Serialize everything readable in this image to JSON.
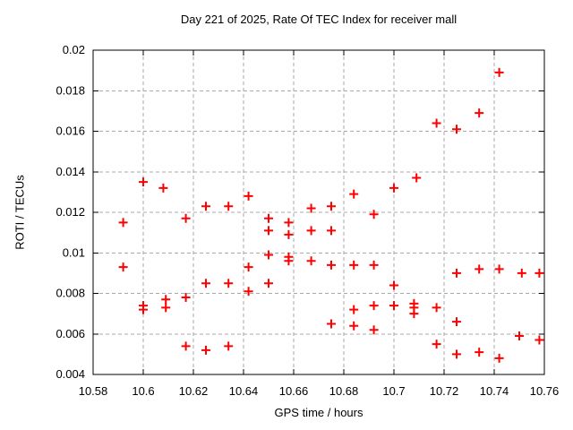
{
  "chart_data": {
    "type": "scatter",
    "title": "Day 221 of 2025, Rate Of TEC Index for receiver mall",
    "xlabel": "GPS time / hours",
    "ylabel": "ROTI / TECUs",
    "xlim": [
      10.58,
      10.76
    ],
    "ylim": [
      0.004,
      0.02
    ],
    "xtick_values": [
      10.58,
      10.6,
      10.62,
      10.64,
      10.66,
      10.68,
      10.7,
      10.72,
      10.74,
      10.76
    ],
    "xtick_labels": [
      "10.58",
      "10.6",
      "10.62",
      "10.64",
      "10.66",
      "10.68",
      "10.7",
      "10.72",
      "10.74",
      "10.76"
    ],
    "ytick_values": [
      0.004,
      0.006,
      0.008,
      0.01,
      0.012,
      0.014,
      0.016,
      0.018,
      0.02
    ],
    "ytick_labels": [
      "0.004",
      "0.006",
      "0.008",
      "0.01",
      "0.012",
      "0.014",
      "0.016",
      "0.018",
      "0.02"
    ],
    "grid": true,
    "legend": "none",
    "marker": {
      "shape": "plus",
      "color": "#ff0000",
      "size": 11
    },
    "grid_color": "#a9a9a9",
    "border_color": "#000000",
    "series": [
      {
        "name": "ROTI",
        "points": [
          [
            10.592,
            0.0115
          ],
          [
            10.592,
            0.0093
          ],
          [
            10.6,
            0.0135
          ],
          [
            10.6,
            0.0074
          ],
          [
            10.6,
            0.0072
          ],
          [
            10.608,
            0.0132
          ],
          [
            10.609,
            0.0077
          ],
          [
            10.609,
            0.0073
          ],
          [
            10.617,
            0.0117
          ],
          [
            10.617,
            0.0078
          ],
          [
            10.617,
            0.0054
          ],
          [
            10.625,
            0.0123
          ],
          [
            10.625,
            0.0085
          ],
          [
            10.625,
            0.0052
          ],
          [
            10.634,
            0.0123
          ],
          [
            10.634,
            0.0085
          ],
          [
            10.634,
            0.0054
          ],
          [
            10.642,
            0.0128
          ],
          [
            10.642,
            0.0093
          ],
          [
            10.642,
            0.0081
          ],
          [
            10.65,
            0.0117
          ],
          [
            10.65,
            0.0111
          ],
          [
            10.65,
            0.0099
          ],
          [
            10.65,
            0.0085
          ],
          [
            10.658,
            0.0115
          ],
          [
            10.658,
            0.0109
          ],
          [
            10.658,
            0.0098
          ],
          [
            10.658,
            0.0096
          ],
          [
            10.667,
            0.0122
          ],
          [
            10.667,
            0.0111
          ],
          [
            10.667,
            0.0096
          ],
          [
            10.675,
            0.0123
          ],
          [
            10.675,
            0.0111
          ],
          [
            10.675,
            0.0094
          ],
          [
            10.675,
            0.0065
          ],
          [
            10.684,
            0.0129
          ],
          [
            10.684,
            0.0094
          ],
          [
            10.684,
            0.0072
          ],
          [
            10.684,
            0.0064
          ],
          [
            10.692,
            0.0119
          ],
          [
            10.692,
            0.0094
          ],
          [
            10.692,
            0.0074
          ],
          [
            10.692,
            0.0062
          ],
          [
            10.7,
            0.0132
          ],
          [
            10.7,
            0.0084
          ],
          [
            10.7,
            0.0074
          ],
          [
            10.709,
            0.0137
          ],
          [
            10.708,
            0.0075
          ],
          [
            10.708,
            0.0073
          ],
          [
            10.708,
            0.007
          ],
          [
            10.717,
            0.0164
          ],
          [
            10.717,
            0.0073
          ],
          [
            10.717,
            0.0055
          ],
          [
            10.725,
            0.0161
          ],
          [
            10.725,
            0.009
          ],
          [
            10.725,
            0.0066
          ],
          [
            10.725,
            0.005
          ],
          [
            10.734,
            0.0169
          ],
          [
            10.734,
            0.0092
          ],
          [
            10.734,
            0.0051
          ],
          [
            10.742,
            0.0189
          ],
          [
            10.742,
            0.0092
          ],
          [
            10.742,
            0.0048
          ],
          [
            10.751,
            0.009
          ],
          [
            10.75,
            0.0059
          ],
          [
            10.758,
            0.009
          ],
          [
            10.758,
            0.0057
          ]
        ]
      }
    ]
  }
}
